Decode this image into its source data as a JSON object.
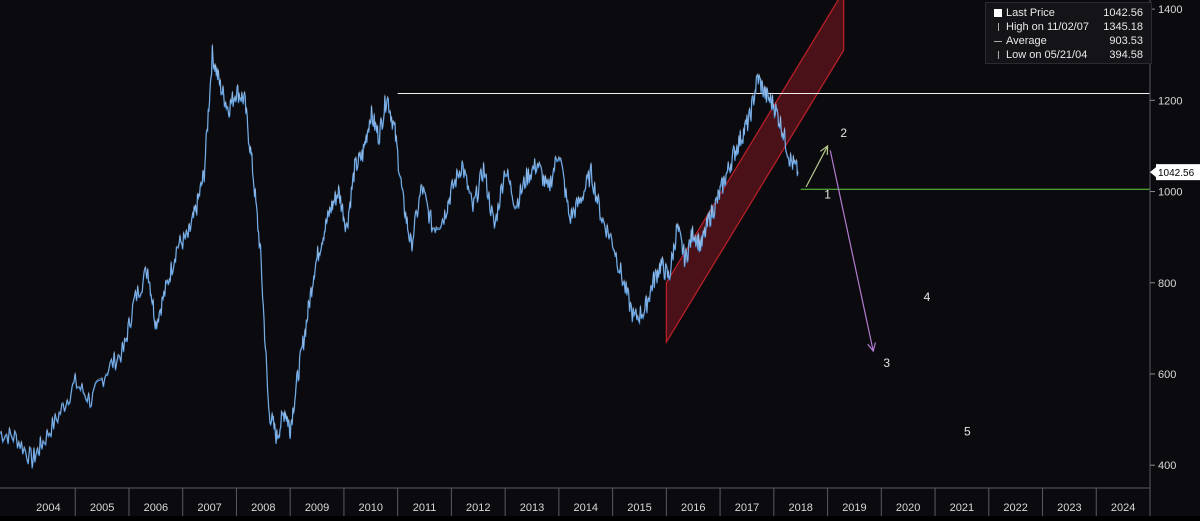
{
  "chart_data": {
    "type": "line",
    "colors": {
      "background": "#0b0b0f",
      "price": "#4a8fd6",
      "priceHighlight": "#dfe8f5",
      "resistance": "#f0f0f0",
      "support": "#5fcf3a",
      "channel": "#c0202a",
      "arrowUp": "#b7c98a",
      "arrowDown": "#b27ad0",
      "label": "#e6e6e6"
    },
    "ylim": [
      350,
      1420
    ],
    "xlim": [
      2003.6,
      2025.0
    ],
    "y_ticks": [
      "400",
      "600",
      "800",
      "1000",
      "1200",
      "1400"
    ],
    "x_ticks": [
      "2004",
      "2005",
      "2006",
      "2007",
      "2008",
      "2009",
      "2010",
      "2011",
      "2012",
      "2013",
      "2014",
      "2015",
      "2016",
      "2017",
      "2018",
      "2019",
      "2020",
      "2021",
      "2022",
      "2023",
      "2024"
    ],
    "series": [
      {
        "x": [
          2003.6,
          2003.9,
          2004.2,
          2004.4,
          2004.7,
          2005.0,
          2005.3,
          2005.6,
          2005.9,
          2006.1,
          2006.35,
          2006.5,
          2006.7,
          2006.9,
          2007.1,
          2007.25,
          2007.4,
          2007.55,
          2007.7,
          2007.85,
          2008.0,
          2008.15,
          2008.3,
          2008.45,
          2008.6,
          2008.75,
          2008.9,
          2009.0,
          2009.15,
          2009.3,
          2009.45,
          2009.6,
          2009.75,
          2009.9,
          2010.05,
          2010.2,
          2010.35,
          2010.5,
          2010.65,
          2010.8,
          2010.95,
          2011.1,
          2011.25,
          2011.45,
          2011.65,
          2011.85,
          2012.0,
          2012.2,
          2012.4,
          2012.6,
          2012.8,
          2013.0,
          2013.2,
          2013.4,
          2013.6,
          2013.8,
          2014.0,
          2014.2,
          2014.4,
          2014.6,
          2014.8,
          2015.0,
          2015.2,
          2015.4,
          2015.6,
          2015.75,
          2015.9,
          2016.05,
          2016.2,
          2016.35,
          2016.5,
          2016.65,
          2016.8,
          2016.95,
          2017.1,
          2017.25,
          2017.4,
          2017.55,
          2017.7,
          2017.85,
          2018.0,
          2018.15,
          2018.3,
          2018.45
        ],
        "values": [
          470,
          460,
          410,
          450,
          510,
          580,
          540,
          610,
          650,
          760,
          830,
          710,
          790,
          880,
          900,
          960,
          1040,
          1300,
          1230,
          1180,
          1220,
          1200,
          1050,
          860,
          520,
          460,
          520,
          480,
          600,
          710,
          830,
          900,
          960,
          1000,
          920,
          1050,
          1080,
          1170,
          1120,
          1210,
          1130,
          980,
          880,
          1010,
          920,
          940,
          1000,
          1060,
          960,
          1050,
          920,
          1050,
          970,
          1030,
          1060,
          1000,
          1090,
          940,
          980,
          1040,
          940,
          890,
          800,
          720,
          740,
          800,
          840,
          810,
          920,
          850,
          910,
          880,
          940,
          980,
          1030,
          1080,
          1120,
          1160,
          1250,
          1210,
          1190,
          1140,
          1070,
          1042.56
        ]
      }
    ],
    "channel": {
      "x0": 2016.0,
      "lower0": 670,
      "upper0": 800,
      "x1": 2019.3,
      "lower1": 1310,
      "upper1": 1440
    },
    "resistance": {
      "x0": 2011.0,
      "x1": 2025.0,
      "y": 1215
    },
    "support": {
      "x0": 2018.5,
      "x1": 2025.0,
      "y": 1005
    },
    "arrows": [
      {
        "from": [
          2018.6,
          1010
        ],
        "to": [
          2019.0,
          1100
        ]
      },
      {
        "from": [
          2019.05,
          1090
        ],
        "to": [
          2019.85,
          650
        ]
      }
    ],
    "wave_labels": [
      {
        "text": "1",
        "x": 2019.0,
        "y": 985
      },
      {
        "text": "2",
        "x": 2019.3,
        "y": 1120
      },
      {
        "text": "3",
        "x": 2020.1,
        "y": 615
      },
      {
        "text": "4",
        "x": 2020.85,
        "y": 760
      },
      {
        "text": "5",
        "x": 2021.6,
        "y": 465
      }
    ],
    "last_price_label": "1042.56",
    "last_price": 1042.56,
    "legend": [
      {
        "label": "Last Price",
        "value": "1042.56"
      },
      {
        "label": "High on 11/02/07",
        "value": "1345.18"
      },
      {
        "label": "Average",
        "value": "903.53"
      },
      {
        "label": "Low on 05/21/04",
        "value": "394.58"
      }
    ]
  }
}
